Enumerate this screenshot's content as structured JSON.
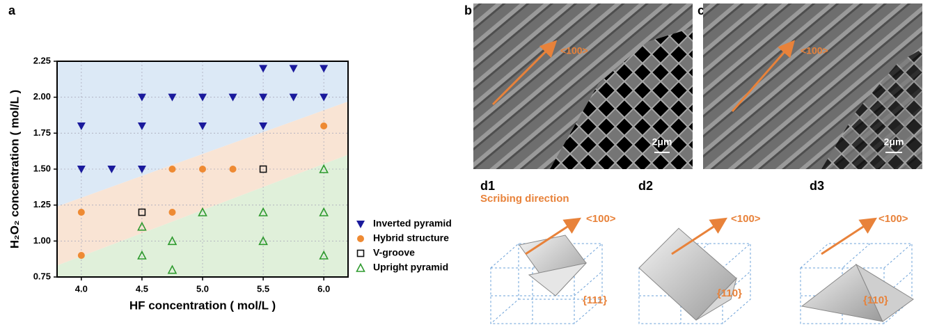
{
  "chart_data": {
    "type": "scatter",
    "xlabel": "HF concentration ( mol/L )",
    "ylabel": "H₂O₂ concentration ( mol/L )",
    "xlim": [
      3.8,
      6.2
    ],
    "ylim": [
      0.75,
      2.25
    ],
    "xticks": [
      {
        "value": 4,
        "label": "4.0"
      },
      {
        "value": 4.5,
        "label": "4.5"
      },
      {
        "value": 5,
        "label": "5.0"
      },
      {
        "value": 5.5,
        "label": "5.5"
      },
      {
        "value": 6,
        "label": "6.0"
      }
    ],
    "yticks": [
      0.75,
      {
        "value": 1,
        "label": "1.00"
      },
      1.25,
      {
        "value": 1.5,
        "label": "1.50"
      },
      1.75,
      {
        "value": 2,
        "label": "2.00"
      },
      2.25
    ],
    "grid": true,
    "boundaries": [
      {
        "x": [
          3.8,
          6.2
        ],
        "y": [
          1.24,
          1.97
        ]
      },
      {
        "x": [
          3.8,
          6.2
        ],
        "y": [
          0.83,
          1.6
        ]
      }
    ],
    "region_colors": [
      "#dce9f6",
      "#f9e4d4",
      "#e0f0da"
    ],
    "series": [
      {
        "name": "Inverted pyramid",
        "color": "#1a1a9c",
        "marker": "triangle-down",
        "filled": true,
        "x": [
          4,
          4,
          4.25,
          4.5,
          4.5,
          4.5,
          4.75,
          5,
          5,
          5.25,
          5.5,
          5.5,
          5.5,
          5.75,
          5.75,
          6,
          6
        ],
        "y": [
          1.8,
          1.5,
          1.5,
          2,
          1.8,
          1.5,
          2,
          2,
          1.8,
          2,
          2.2,
          2,
          1.8,
          2.2,
          2,
          2.2,
          2
        ]
      },
      {
        "name": "Hybrid structure",
        "color": "#ee8a33",
        "marker": "circle",
        "filled": true,
        "x": [
          4,
          4,
          4.75,
          4.75,
          5,
          5.25,
          6
        ],
        "y": [
          1.2,
          0.9,
          1.5,
          1.2,
          1.5,
          1.5,
          1.8
        ]
      },
      {
        "name": "V-groove",
        "color": "#111111",
        "marker": "square",
        "filled": false,
        "x": [
          4.5,
          5.5
        ],
        "y": [
          1.2,
          1.5
        ]
      },
      {
        "name": "Upright pyramid",
        "color": "#2e9a2e",
        "marker": "triangle-up",
        "filled": false,
        "x": [
          4.5,
          4.5,
          4.75,
          4.75,
          5,
          5.5,
          5.5,
          6,
          6,
          6
        ],
        "y": [
          1.1,
          0.9,
          1,
          0.8,
          1.2,
          1.2,
          1,
          1.5,
          1.2,
          0.9
        ]
      }
    ]
  },
  "panels": {
    "a": "a",
    "b": "b",
    "c": "c",
    "b_dir": "<100>",
    "c_dir": "<100>",
    "b_scale": "2μm",
    "c_scale": "2μm",
    "d1": "d1",
    "d2": "d2",
    "d3": "d3",
    "scribing": "Scribing direction",
    "d1_dir": "<100>",
    "d2_dir": "<100>",
    "d3_dir": "<100>",
    "d1_plane": "{111}",
    "d2_plane": "{110}",
    "d3_plane": "{110}"
  }
}
